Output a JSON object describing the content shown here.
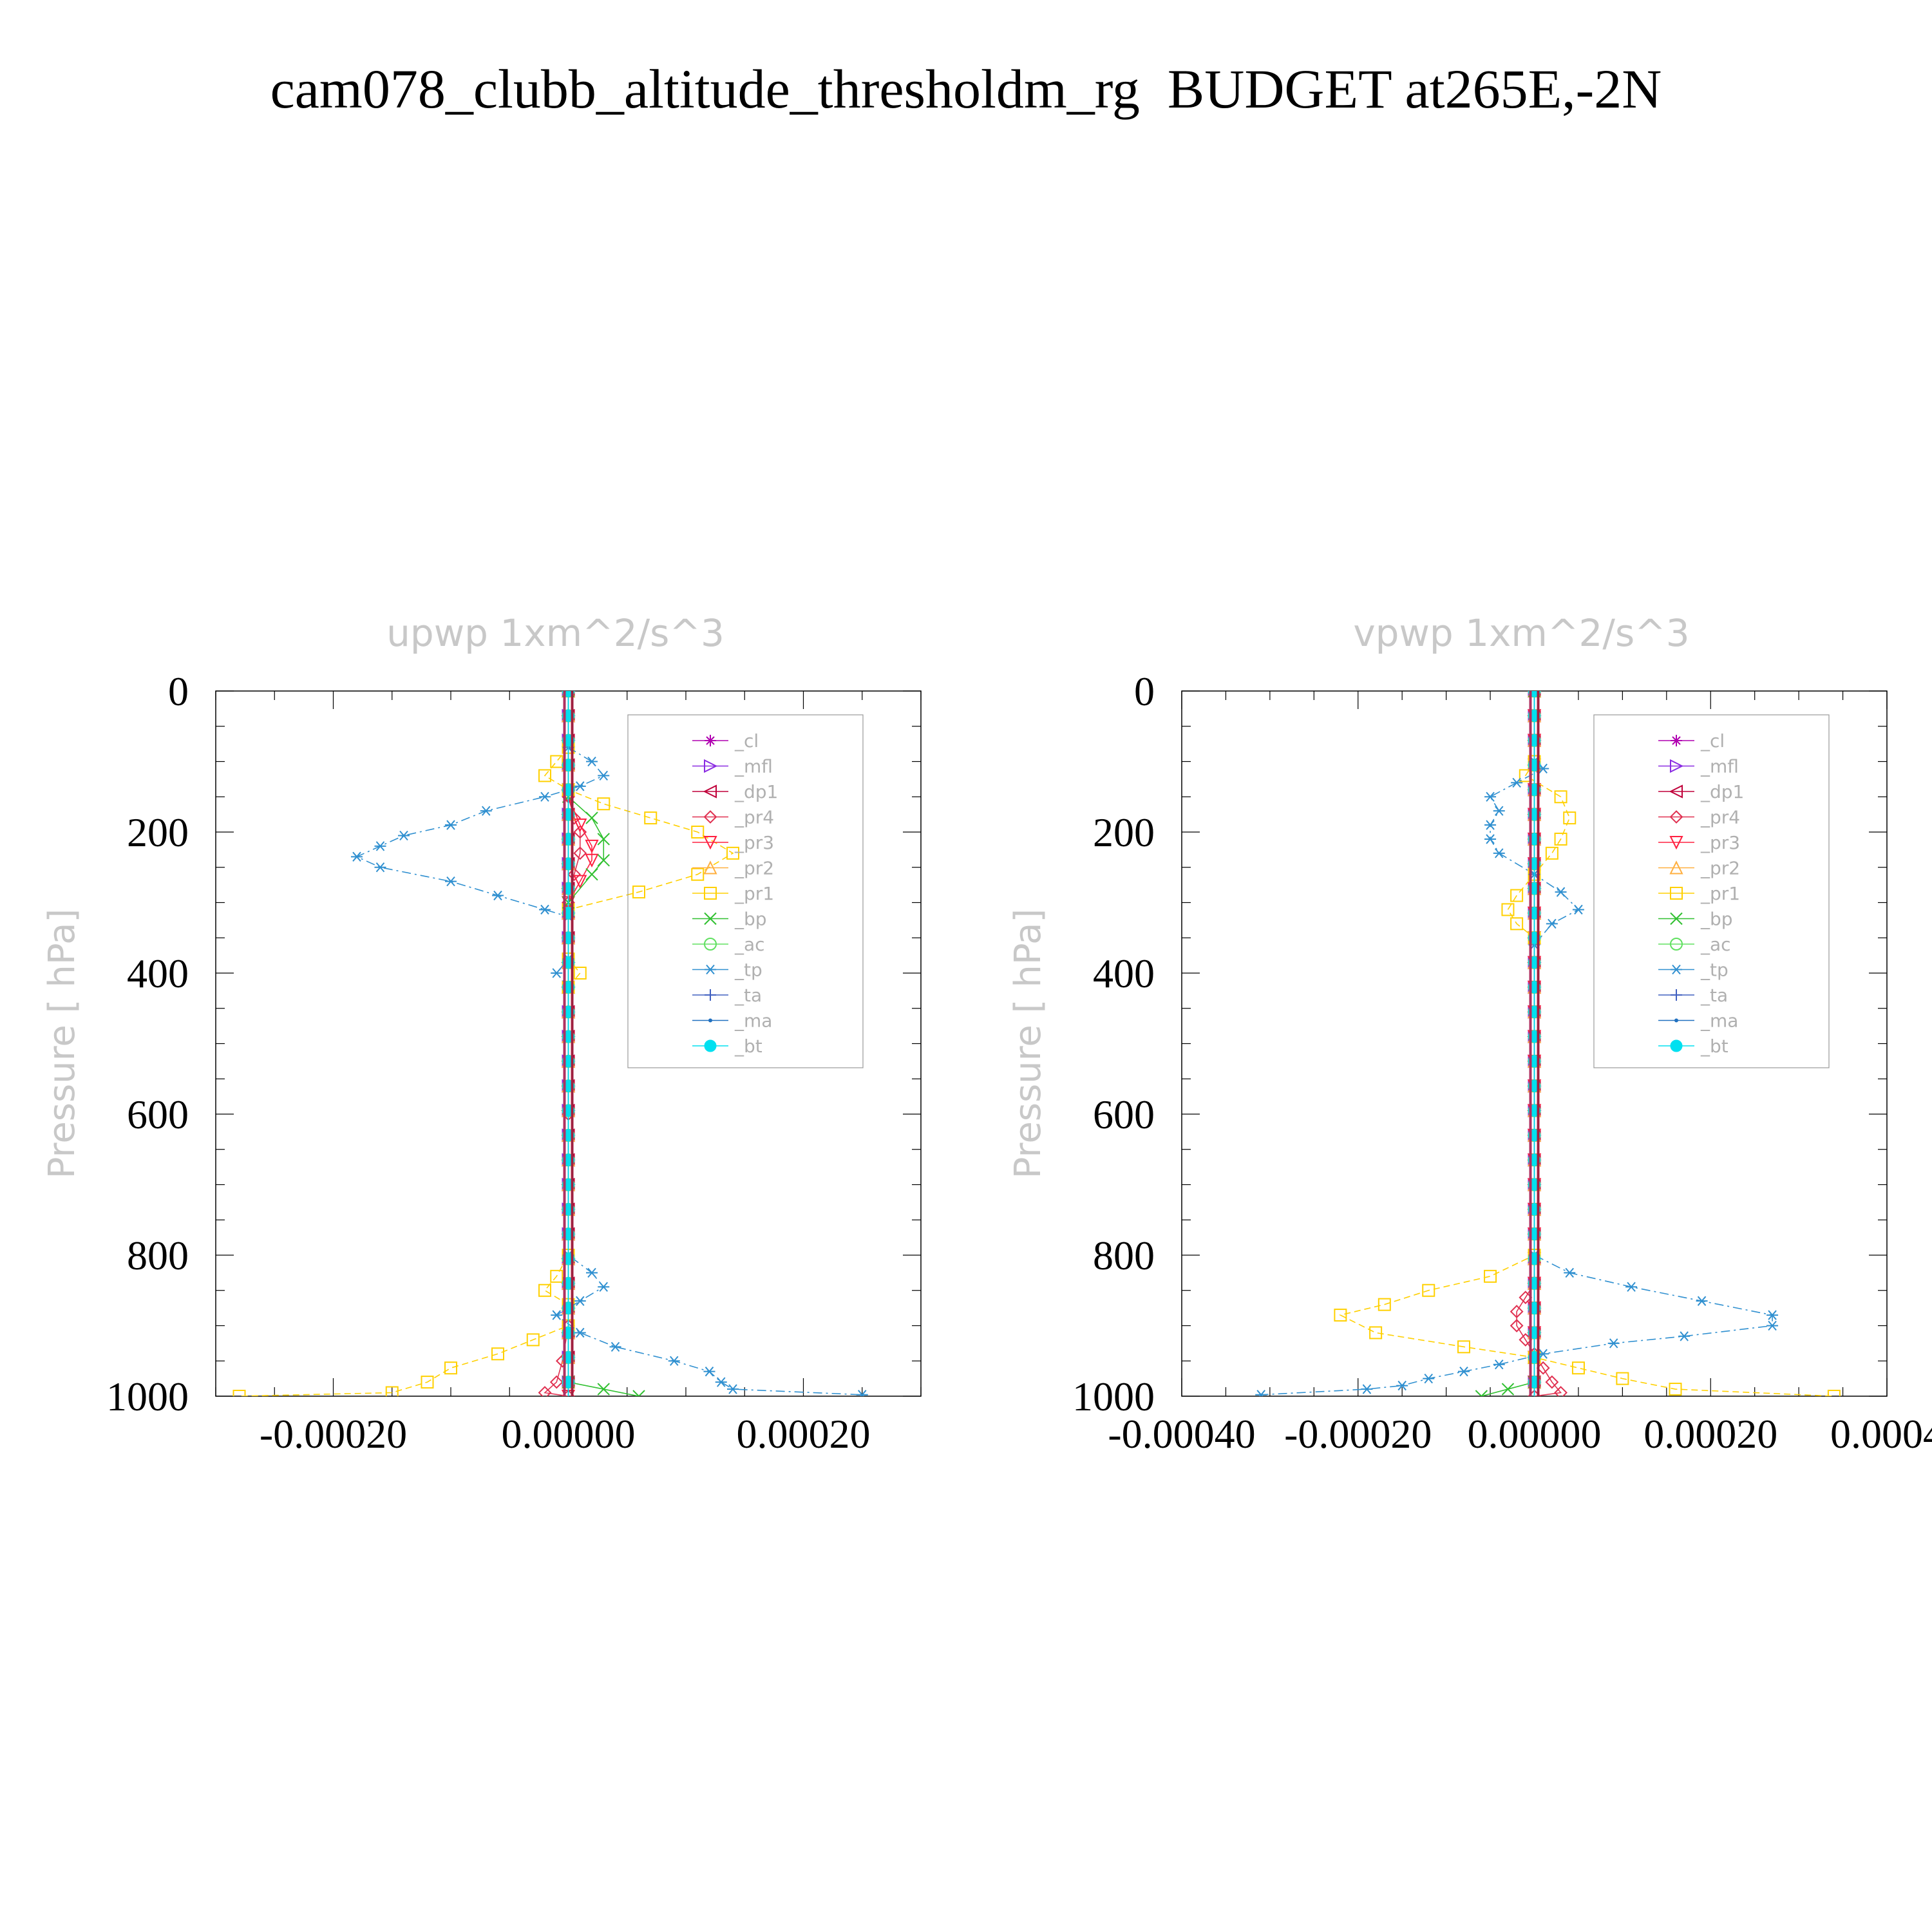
{
  "title": "cam078_clubb_altitude_thresholdm_rg  BUDGET at265E,-2N",
  "chart_data": [
    {
      "type": "line",
      "title": "upwp   1xm^2/s^3",
      "ylabel": "Pressure  [ hPa]",
      "xlabel": "",
      "xlim": [
        -0.0003,
        0.0003
      ],
      "ylim": [
        0,
        1000
      ],
      "y_inverted": true,
      "xticks": [
        -0.0002,
        0.0,
        0.0002
      ],
      "xtick_labels": [
        "-0.00020",
        "0.00000",
        "0.00020"
      ],
      "yticks": [
        0,
        200,
        400,
        600,
        800,
        1000
      ],
      "ytick_labels": [
        "0",
        "200",
        "400",
        "600",
        "800",
        "1000"
      ],
      "legend_position": "top-right",
      "series": [
        {
          "name": "_cl",
          "color": "#b000b0",
          "marker": "star",
          "points": [
            [
              0,
              0
            ],
            [
              0,
              100
            ],
            [
              0,
              200
            ],
            [
              0,
              300
            ],
            [
              0,
              400
            ],
            [
              0,
              500
            ],
            [
              0,
              600
            ],
            [
              0,
              700
            ],
            [
              0,
              800
            ],
            [
              0,
              900
            ],
            [
              0,
              1000
            ]
          ]
        },
        {
          "name": "_mfl",
          "color": "#8a2be2",
          "marker": "tri-right",
          "points": [
            [
              0,
              0
            ],
            [
              0,
              100
            ],
            [
              0,
              200
            ],
            [
              0,
              300
            ],
            [
              0,
              400
            ],
            [
              0,
              500
            ],
            [
              0,
              600
            ],
            [
              0,
              700
            ],
            [
              0,
              800
            ],
            [
              0,
              900
            ],
            [
              0,
              1000
            ]
          ]
        },
        {
          "name": "_dp1",
          "color": "#c0003a",
          "marker": "tri-left",
          "points": [
            [
              0,
              0
            ],
            [
              0,
              100
            ],
            [
              0,
              200
            ],
            [
              0,
              300
            ],
            [
              0,
              400
            ],
            [
              0,
              500
            ],
            [
              0,
              600
            ],
            [
              0,
              700
            ],
            [
              0,
              800
            ],
            [
              0,
              900
            ],
            [
              0,
              1000
            ]
          ]
        },
        {
          "name": "_pr4",
          "color": "#e03050",
          "marker": "diamond",
          "points": [
            [
              0,
              0
            ],
            [
              0,
              150
            ],
            [
              5e-06,
              180
            ],
            [
              1e-05,
              200
            ],
            [
              1e-05,
              230
            ],
            [
              5e-06,
              260
            ],
            [
              0,
              300
            ],
            [
              0,
              600
            ],
            [
              0,
              900
            ],
            [
              -5e-06,
              950
            ],
            [
              -1e-05,
              980
            ],
            [
              -2e-05,
              995
            ],
            [
              0,
              1000
            ]
          ]
        },
        {
          "name": "_pr3",
          "color": "#ff2040",
          "marker": "tri-down",
          "points": [
            [
              0,
              0
            ],
            [
              0,
              150
            ],
            [
              1e-05,
              190
            ],
            [
              2e-05,
              220
            ],
            [
              2e-05,
              240
            ],
            [
              1e-05,
              270
            ],
            [
              0,
              300
            ],
            [
              0,
              1000
            ]
          ]
        },
        {
          "name": "_pr2",
          "color": "#ffb040",
          "marker": "tri-up",
          "points": [
            [
              0,
              0
            ],
            [
              0,
              1000
            ]
          ]
        },
        {
          "name": "_pr1",
          "color": "#ffd000",
          "marker": "square",
          "points": [
            [
              0,
              80
            ],
            [
              -1e-05,
              100
            ],
            [
              -2e-05,
              120
            ],
            [
              0,
              140
            ],
            [
              3e-05,
              160
            ],
            [
              7e-05,
              180
            ],
            [
              0.00011,
              200
            ],
            [
              0.00014,
              230
            ],
            [
              0.00011,
              260
            ],
            [
              6e-05,
              285
            ],
            [
              0,
              310
            ],
            [
              0,
              380
            ],
            [
              1e-05,
              400
            ],
            [
              0,
              420
            ],
            [
              0,
              800
            ],
            [
              -1e-05,
              830
            ],
            [
              -2e-05,
              850
            ],
            [
              0,
              870
            ],
            [
              0,
              900
            ],
            [
              -3e-05,
              920
            ],
            [
              -6e-05,
              940
            ],
            [
              -0.0001,
              960
            ],
            [
              -0.00012,
              980
            ],
            [
              -0.00015,
              995
            ],
            [
              -0.00028,
              1000
            ]
          ]
        },
        {
          "name": "_bp",
          "color": "#30c030",
          "marker": "x",
          "points": [
            [
              0,
              0
            ],
            [
              0,
              150
            ],
            [
              2e-05,
              180
            ],
            [
              3e-05,
              210
            ],
            [
              3e-05,
              240
            ],
            [
              2e-05,
              260
            ],
            [
              0,
              300
            ],
            [
              0,
              980
            ],
            [
              3e-05,
              990
            ],
            [
              6e-05,
              1000
            ]
          ]
        },
        {
          "name": "_ac",
          "color": "#60e060",
          "marker": "circle",
          "points": [
            [
              0,
              0
            ],
            [
              0,
              1000
            ]
          ]
        },
        {
          "name": "_tp",
          "color": "#3090d0",
          "marker": "asterisk",
          "points": [
            [
              0,
              0
            ],
            [
              0,
              80
            ],
            [
              2e-05,
              100
            ],
            [
              3e-05,
              120
            ],
            [
              1e-05,
              135
            ],
            [
              -2e-05,
              150
            ],
            [
              -7e-05,
              170
            ],
            [
              -0.0001,
              190
            ],
            [
              -0.00014,
              205
            ],
            [
              -0.00016,
              220
            ],
            [
              -0.00018,
              235
            ],
            [
              -0.00016,
              250
            ],
            [
              -0.0001,
              270
            ],
            [
              -6e-05,
              290
            ],
            [
              -2e-05,
              310
            ],
            [
              0,
              320
            ],
            [
              0,
              380
            ],
            [
              -1e-05,
              400
            ],
            [
              0,
              420
            ],
            [
              0,
              800
            ],
            [
              2e-05,
              825
            ],
            [
              3e-05,
              845
            ],
            [
              1e-05,
              865
            ],
            [
              -1e-05,
              885
            ],
            [
              1e-05,
              910
            ],
            [
              4e-05,
              930
            ],
            [
              9e-05,
              950
            ],
            [
              0.00012,
              965
            ],
            [
              0.00013,
              980
            ],
            [
              0.00014,
              990
            ],
            [
              0.00025,
              998
            ]
          ]
        },
        {
          "name": "_ta",
          "color": "#4060c0",
          "marker": "plus",
          "points": [
            [
              0,
              0
            ],
            [
              0,
              1000
            ]
          ]
        },
        {
          "name": "_ma",
          "color": "#2070c0",
          "marker": "dot",
          "points": [
            [
              0,
              0
            ],
            [
              0,
              1000
            ]
          ]
        },
        {
          "name": "_bt",
          "color": "#00e0f0",
          "marker": "filled-circle",
          "points": [
            [
              0,
              0
            ],
            [
              0,
              1000
            ]
          ]
        }
      ]
    },
    {
      "type": "line",
      "title": "vpwp   1xm^2/s^3",
      "ylabel": "Pressure  [ hPa]",
      "xlabel": "",
      "xlim": [
        -0.0004,
        0.0004
      ],
      "ylim": [
        0,
        1000
      ],
      "y_inverted": true,
      "xticks": [
        -0.0004,
        -0.0002,
        0.0,
        0.0002,
        0.0004
      ],
      "xtick_labels": [
        "-0.00040",
        "-0.00020",
        "0.00000",
        "0.00020",
        "0.0004"
      ],
      "yticks": [
        0,
        200,
        400,
        600,
        800,
        1000
      ],
      "ytick_labels": [
        "0",
        "200",
        "400",
        "600",
        "800",
        "1000"
      ],
      "legend_position": "top-right",
      "series": [
        {
          "name": "_cl",
          "color": "#b000b0",
          "marker": "star",
          "points": [
            [
              0,
              0
            ],
            [
              0,
              1000
            ]
          ]
        },
        {
          "name": "_mfl",
          "color": "#8a2be2",
          "marker": "tri-right",
          "points": [
            [
              0,
              0
            ],
            [
              0,
              1000
            ]
          ]
        },
        {
          "name": "_dp1",
          "color": "#c0003a",
          "marker": "tri-left",
          "points": [
            [
              0,
              0
            ],
            [
              0,
              1000
            ]
          ]
        },
        {
          "name": "_pr4",
          "color": "#e03050",
          "marker": "diamond",
          "points": [
            [
              0,
              0
            ],
            [
              0,
              840
            ],
            [
              -1e-05,
              860
            ],
            [
              -2e-05,
              880
            ],
            [
              -2e-05,
              900
            ],
            [
              -1e-05,
              920
            ],
            [
              0,
              940
            ],
            [
              1e-05,
              960
            ],
            [
              2e-05,
              980
            ],
            [
              3e-05,
              995
            ],
            [
              0,
              1000
            ]
          ]
        },
        {
          "name": "_pr3",
          "color": "#ff2040",
          "marker": "tri-down",
          "points": [
            [
              0,
              0
            ],
            [
              0,
              1000
            ]
          ]
        },
        {
          "name": "_pr2",
          "color": "#ffb040",
          "marker": "tri-up",
          "points": [
            [
              0,
              0
            ],
            [
              0,
              1000
            ]
          ]
        },
        {
          "name": "_pr1",
          "color": "#ffd000",
          "marker": "square",
          "points": [
            [
              0,
              100
            ],
            [
              -1e-05,
              120
            ],
            [
              3e-05,
              150
            ],
            [
              4e-05,
              180
            ],
            [
              3e-05,
              210
            ],
            [
              2e-05,
              230
            ],
            [
              0,
              260
            ],
            [
              -2e-05,
              290
            ],
            [
              -3e-05,
              310
            ],
            [
              -2e-05,
              330
            ],
            [
              0,
              350
            ],
            [
              0,
              800
            ],
            [
              -5e-05,
              830
            ],
            [
              -0.00012,
              850
            ],
            [
              -0.00017,
              870
            ],
            [
              -0.00022,
              885
            ],
            [
              -0.00018,
              910
            ],
            [
              -8e-05,
              930
            ],
            [
              0,
              945
            ],
            [
              5e-05,
              960
            ],
            [
              0.0001,
              975
            ],
            [
              0.00016,
              990
            ],
            [
              0.00034,
              1000
            ]
          ]
        },
        {
          "name": "_bp",
          "color": "#30c030",
          "marker": "x",
          "points": [
            [
              0,
              0
            ],
            [
              0,
              980
            ],
            [
              -3e-05,
              990
            ],
            [
              -6e-05,
              1000
            ]
          ]
        },
        {
          "name": "_ac",
          "color": "#60e060",
          "marker": "circle",
          "points": [
            [
              0,
              0
            ],
            [
              0,
              1000
            ]
          ]
        },
        {
          "name": "_tp",
          "color": "#3090d0",
          "marker": "asterisk",
          "points": [
            [
              0,
              0
            ],
            [
              0,
              100
            ],
            [
              1e-05,
              110
            ],
            [
              -2e-05,
              130
            ],
            [
              -5e-05,
              150
            ],
            [
              -4e-05,
              170
            ],
            [
              -5e-05,
              190
            ],
            [
              -5e-05,
              210
            ],
            [
              -4e-05,
              230
            ],
            [
              0,
              260
            ],
            [
              3e-05,
              285
            ],
            [
              5e-05,
              310
            ],
            [
              2e-05,
              330
            ],
            [
              0,
              360
            ],
            [
              0,
              800
            ],
            [
              4e-05,
              825
            ],
            [
              0.00011,
              845
            ],
            [
              0.00019,
              865
            ],
            [
              0.00027,
              885
            ],
            [
              0.00027,
              900
            ],
            [
              0.00017,
              915
            ],
            [
              9e-05,
              925
            ],
            [
              1e-05,
              940
            ],
            [
              -4e-05,
              955
            ],
            [
              -8e-05,
              965
            ],
            [
              -0.00012,
              975
            ],
            [
              -0.00015,
              985
            ],
            [
              -0.00019,
              990
            ],
            [
              -0.00031,
              998
            ]
          ]
        },
        {
          "name": "_ta",
          "color": "#4060c0",
          "marker": "plus",
          "points": [
            [
              0,
              0
            ],
            [
              0,
              1000
            ]
          ]
        },
        {
          "name": "_ma",
          "color": "#2070c0",
          "marker": "dot",
          "points": [
            [
              0,
              0
            ],
            [
              0,
              1000
            ]
          ]
        },
        {
          "name": "_bt",
          "color": "#00e0f0",
          "marker": "filled-circle",
          "points": [
            [
              0,
              0
            ],
            [
              0,
              1000
            ]
          ]
        }
      ]
    }
  ]
}
